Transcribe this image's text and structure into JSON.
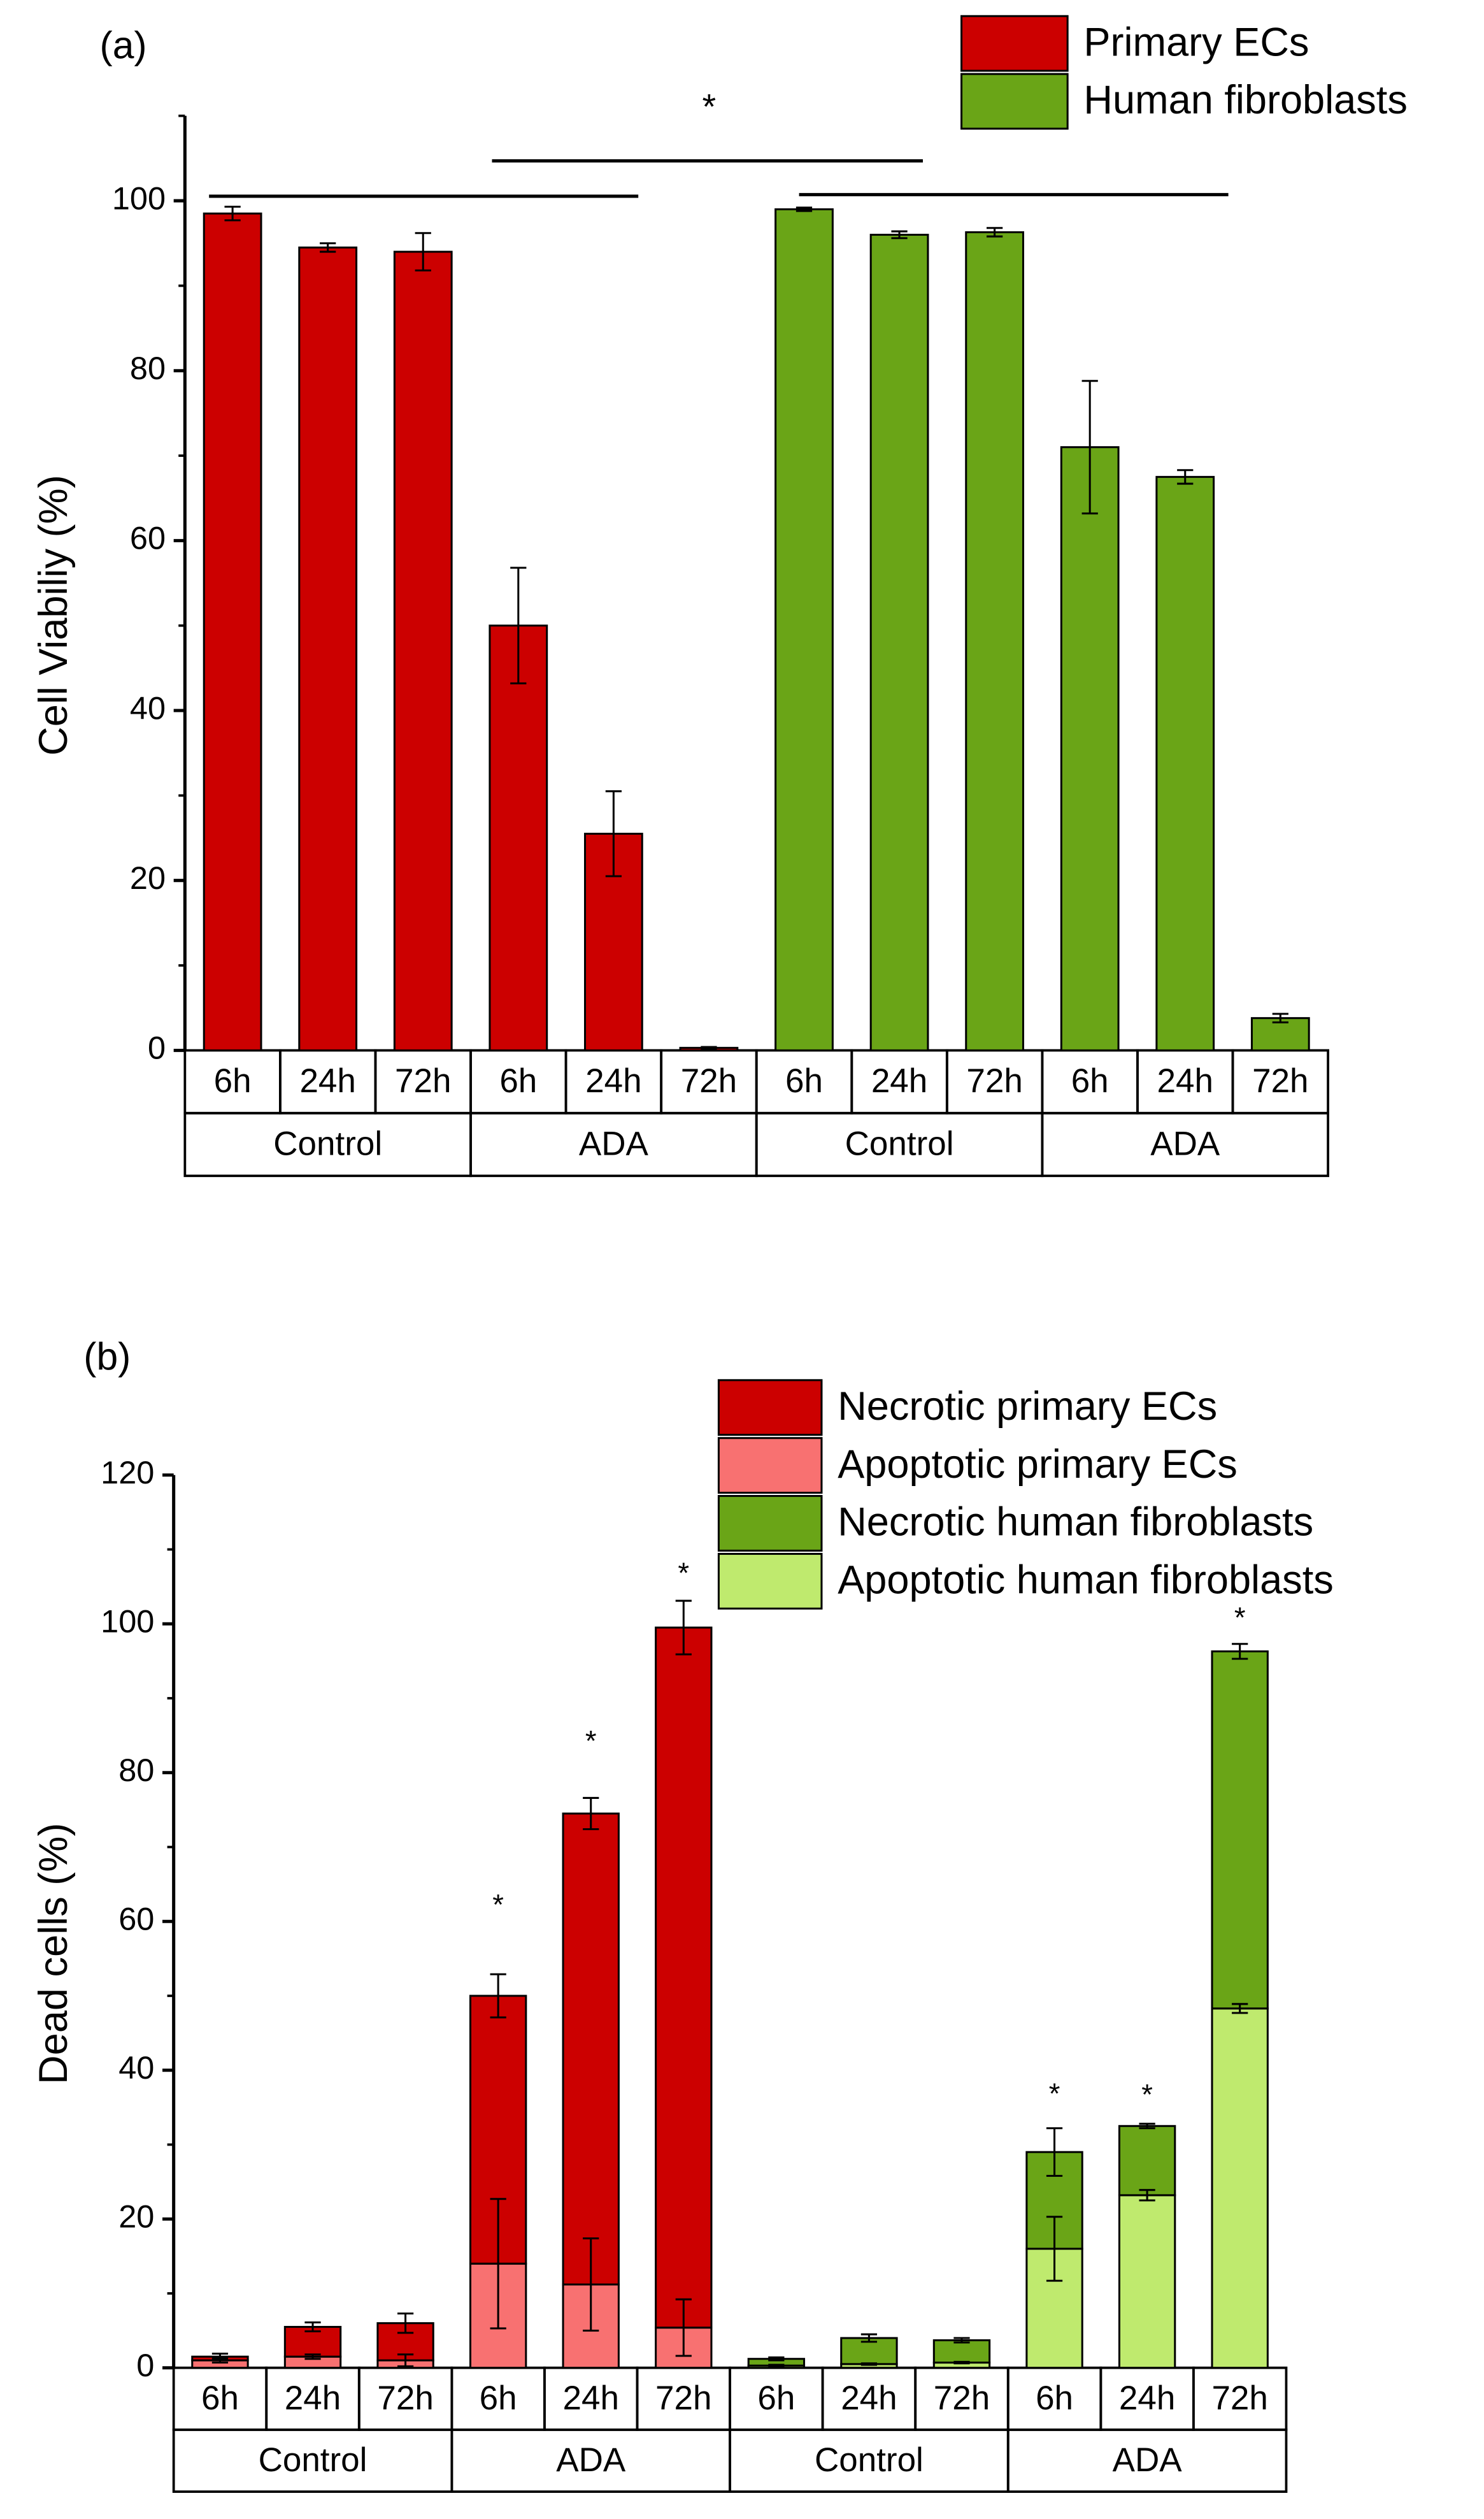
{
  "chart_data": [
    {
      "type": "bar",
      "title": "(a)",
      "ylabel": "Cell Viabiliy (%)",
      "categories": [
        "6h",
        "24h",
        "72h",
        "6h",
        "24h",
        "72h",
        "6h",
        "24h",
        "72h",
        "6h",
        "24h",
        "72h"
      ],
      "groups": [
        "Control",
        "ADA",
        "Control",
        "ADA"
      ],
      "series": [
        {
          "name": "Primary ECs",
          "color": "#cc0000",
          "values": [
            98.5,
            94.5,
            94,
            50,
            25.5,
            0.3,
            null,
            null,
            null,
            null,
            null,
            null
          ],
          "errors": [
            0.8,
            0.5,
            2.2,
            6.8,
            5,
            0.1,
            null,
            null,
            null,
            null,
            null,
            null
          ]
        },
        {
          "name": "Human fibroblasts",
          "color": "#6aa517",
          "values": [
            null,
            null,
            null,
            null,
            null,
            null,
            99,
            96,
            96.3,
            71,
            67.5,
            3.8
          ],
          "errors": [
            null,
            null,
            null,
            null,
            null,
            null,
            0.2,
            0.4,
            0.5,
            7.8,
            0.8,
            0.5
          ]
        }
      ],
      "annotation": "*",
      "ylim": [
        0,
        110
      ],
      "yticks": [
        0,
        20,
        40,
        60,
        80,
        100
      ],
      "minor_yticks": [
        10,
        30,
        50,
        70,
        90,
        110
      ],
      "legend": "upper right"
    },
    {
      "type": "stacked_bar",
      "title": "(b)",
      "ylabel": "Dead cells (%)",
      "categories": [
        "6h",
        "24h",
        "72h",
        "6h",
        "24h",
        "72h",
        "6h",
        "24h",
        "72h",
        "6h",
        "24h",
        "72h"
      ],
      "groups": [
        "Control",
        "ADA",
        "Control",
        "ADA"
      ],
      "series": [
        {
          "name": "Necrotic primary ECs",
          "color": "#cc0000",
          "values": [
            0.5,
            4.0,
            5.0,
            36,
            63.3,
            94.1,
            null,
            null,
            null,
            null,
            null,
            null
          ],
          "errors": [
            0.4,
            0.6,
            1.3,
            2.9,
            2.1,
            3.6,
            null,
            null,
            null,
            null,
            null,
            null
          ]
        },
        {
          "name": "Apoptotic primary ECs",
          "color": "#f87171",
          "values": [
            1.0,
            1.5,
            1.0,
            14,
            11.2,
            5.4,
            null,
            null,
            null,
            null,
            null,
            null
          ],
          "errors": [
            0.3,
            0.3,
            0.8,
            8.7,
            6.2,
            3.8,
            null,
            null,
            null,
            null,
            null,
            null
          ]
        },
        {
          "name": "Necrotic human fibroblasts",
          "color": "#6aa517",
          "values": [
            null,
            null,
            null,
            null,
            null,
            null,
            0.9,
            3.5,
            3.0,
            13,
            9.3,
            48.0
          ],
          "errors": [
            null,
            null,
            null,
            null,
            null,
            null,
            0.2,
            0.5,
            0.3,
            3.2,
            0.3,
            1.0
          ]
        },
        {
          "name": "Apoptotic human fibroblasts",
          "color": "#bfea6e",
          "values": [
            null,
            null,
            null,
            null,
            null,
            null,
            0.3,
            0.5,
            0.7,
            16,
            23.2,
            48.3
          ],
          "errors": [
            null,
            null,
            null,
            null,
            null,
            null,
            0.1,
            0.1,
            0.1,
            4.3,
            0.7,
            0.6
          ]
        }
      ],
      "annotations": [
        null,
        null,
        null,
        "*",
        "*",
        "*",
        null,
        null,
        null,
        "*",
        "*",
        "*"
      ],
      "ylim": [
        0,
        120
      ],
      "yticks": [
        0,
        20,
        40,
        60,
        80,
        100,
        120
      ],
      "minor_yticks": [
        10,
        30,
        50,
        70,
        90,
        110
      ],
      "legend": "upper right"
    }
  ]
}
